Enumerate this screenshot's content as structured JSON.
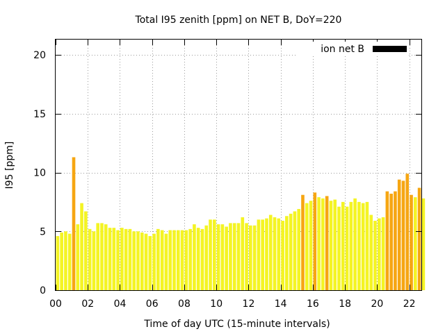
{
  "chart_data": {
    "type": "bar",
    "title": "Total I95 zenith [ppm] on NET B, DoY=220",
    "xlabel": "Time of day UTC (15-minute intervals)",
    "ylabel": "I95 [ppm]",
    "xlim": [
      0,
      22.75
    ],
    "ylim": [
      0,
      21.3
    ],
    "x_interval_hours": 0.25,
    "bar_width_hours": 0.2,
    "x_ticks": [
      0,
      2,
      4,
      6,
      8,
      10,
      12,
      14,
      16,
      18,
      20,
      22
    ],
    "x_tick_labels": [
      "00",
      "02",
      "04",
      "06",
      "08",
      "10",
      "12",
      "14",
      "16",
      "18",
      "20",
      "22"
    ],
    "y_ticks": [
      0,
      5,
      10,
      15,
      20
    ],
    "y_tick_labels": [
      "0",
      "5",
      "10",
      "15",
      "20"
    ],
    "grid": true,
    "legend": {
      "position": "top-right",
      "entries": [
        {
          "label": "ion net B",
          "color": "#000000"
        }
      ]
    },
    "colors": {
      "normal": "#f4f424",
      "elevated": "#f6a612"
    },
    "elevated_threshold": 8.0,
    "series": [
      {
        "name": "ion net B",
        "start_hour": 0,
        "step_hour": 0.25,
        "values": [
          4.6,
          4.9,
          5.0,
          4.8,
          11.3,
          5.6,
          7.4,
          6.7,
          5.2,
          5.0,
          5.7,
          5.7,
          5.6,
          5.3,
          5.3,
          5.1,
          5.3,
          5.2,
          5.2,
          5.0,
          5.0,
          4.9,
          4.8,
          4.6,
          4.8,
          5.2,
          5.1,
          4.8,
          5.1,
          5.1,
          5.1,
          5.1,
          5.1,
          5.2,
          5.6,
          5.3,
          5.2,
          5.5,
          6.0,
          6.0,
          5.6,
          5.6,
          5.4,
          5.7,
          5.7,
          5.7,
          6.2,
          5.7,
          5.5,
          5.5,
          6.0,
          6.0,
          6.1,
          6.4,
          6.2,
          6.1,
          5.9,
          6.3,
          6.5,
          6.7,
          6.9,
          8.1,
          7.4,
          7.6,
          8.3,
          7.9,
          7.8,
          8.0,
          7.6,
          7.7,
          7.1,
          7.5,
          7.1,
          7.5,
          7.8,
          7.5,
          7.4,
          7.5,
          6.4,
          5.9,
          6.1,
          6.2,
          8.4,
          8.2,
          8.4,
          9.4,
          9.3,
          9.9,
          8.1,
          7.9,
          8.7,
          7.8
        ]
      }
    ]
  }
}
